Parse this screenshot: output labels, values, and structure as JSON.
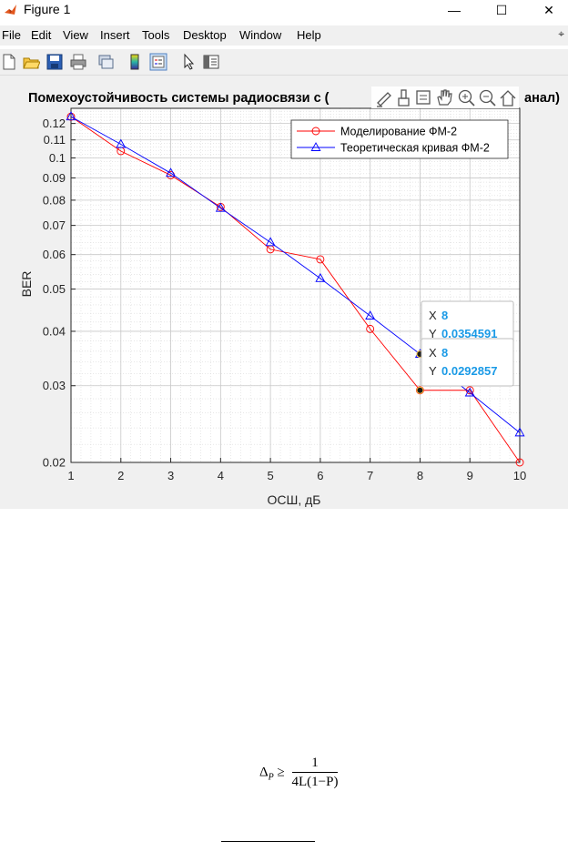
{
  "window": {
    "title": "Figure 1",
    "minimize": "—",
    "maximize": "☐",
    "close": "✕"
  },
  "menu": {
    "items": [
      "File",
      "Edit",
      "View",
      "Insert",
      "Tools",
      "Desktop",
      "Window",
      "Help"
    ],
    "pin": "⌖"
  },
  "toolbar": {
    "icons": [
      "new-figure-icon",
      "open-file-icon",
      "save-icon",
      "print-icon",
      "link-icon",
      "colorbar-icon",
      "legend-icon",
      "pointer-icon",
      "property-inspector-icon"
    ]
  },
  "axes_toolbar": {
    "icons": [
      "export-icon",
      "brush-icon",
      "data-tips-icon",
      "pan-icon",
      "zoom-in-icon",
      "zoom-out-icon",
      "home-icon"
    ]
  },
  "chart_data": {
    "type": "line",
    "title_left": "Помехоустойчивость системы радиосвязи с (",
    "title_right": "анал)",
    "xlabel": "ОСШ, дБ",
    "ylabel": "BER",
    "xlim": [
      1,
      10
    ],
    "ylim": [
      0.02,
      0.13
    ],
    "yscale": "log",
    "grid": "major and minor",
    "x_ticks": [
      1,
      2,
      3,
      4,
      5,
      6,
      7,
      8,
      9,
      10
    ],
    "y_ticks": [
      0.12,
      0.11,
      0.1,
      0.09,
      0.08,
      0.07,
      0.06,
      0.05,
      0.04,
      0.03,
      0.02
    ],
    "legend_position": "top-right",
    "x": [
      1,
      2,
      3,
      4,
      5,
      6,
      7,
      8,
      9,
      10
    ],
    "series": [
      {
        "name": "Моделирование ФМ-2",
        "color": "#ff0000",
        "marker": "circle",
        "values": [
          0.1244,
          0.1037,
          0.0913,
          0.0772,
          0.0617,
          0.0585,
          0.0405,
          0.0292857,
          0.0292857,
          0.02
        ]
      },
      {
        "name": "Теоретическая кривая ФМ-2",
        "color": "#0000ff",
        "marker": "triangle",
        "values": [
          0.1244,
          0.1075,
          0.0923,
          0.0767,
          0.064,
          0.0529,
          0.0434,
          0.0354591,
          0.0289,
          0.0234
        ]
      }
    ],
    "datatips": [
      {
        "x_label": "X",
        "x_value": "8",
        "y_label": "Y",
        "y_value": "0.0354591",
        "x": 8,
        "y": 0.0354591
      },
      {
        "x_label": "X",
        "x_value": "8",
        "y_label": "Y",
        "y_value": "0.0292857",
        "x": 8,
        "y": 0.0292857
      }
    ]
  },
  "formula": {
    "lhs": "Δ",
    "lhs_sub": "P",
    "rel": "≥",
    "numerator": "1",
    "denominator": "4L(1−P)"
  }
}
